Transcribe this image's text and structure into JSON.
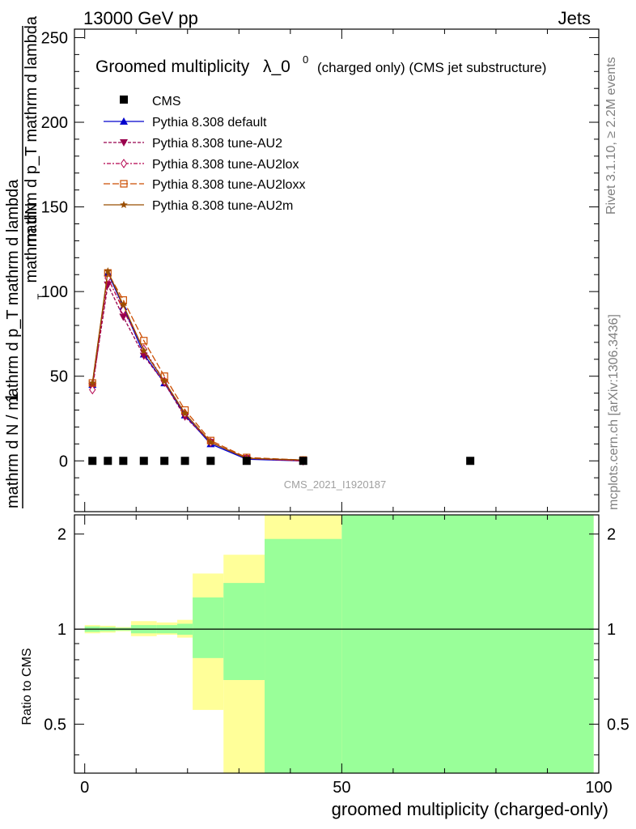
{
  "header": {
    "left": "13000 GeV pp",
    "right": "Jets"
  },
  "side_labels": {
    "rivet": "Rivet 3.1.10, ≥ 2.2M events",
    "mcplots": "mcplots.cern.ch [arXiv:1306.3436]"
  },
  "chart_data": {
    "type": "line",
    "title": "Groomed multiplicity",
    "title_symbol": "λ_0",
    "title_sup": "0",
    "title_suffix": "(charged only) (CMS jet substructure)",
    "watermark": "CMS_2021_I1920187",
    "xlabel": "groomed multiplicity (charged-only)",
    "ylabel_top": {
      "numerator": "mathrm dN",
      "denominator": "mathrm d p_T mathrm d lambda",
      "sub": "T",
      "one": "1"
    },
    "ylabel_bottom": "mathrm d N / mathrm d p_T mathrm d lambda",
    "ylabel_ratio": "Ratio to CMS",
    "xlim": [
      -2,
      100
    ],
    "ylim": [
      -30,
      255
    ],
    "ratio_ylim": [
      0.35,
      2.3
    ],
    "x_ticks": [
      "0",
      "50",
      "100"
    ],
    "y_ticks": [
      "0",
      "50",
      "100",
      "150",
      "200",
      "250"
    ],
    "ratio_ticks": [
      "0.5",
      "1",
      "2"
    ],
    "cms": {
      "name": "CMS",
      "x": [
        1.5,
        4.5,
        7.5,
        11.5,
        15.5,
        19.5,
        24.5,
        31.5,
        42.5,
        75
      ],
      "y": [
        0,
        0,
        0,
        0,
        0,
        0,
        0,
        0,
        0,
        0
      ]
    },
    "series": [
      {
        "name": "Pythia 8.308 default",
        "color": "#0000cc",
        "dash": "",
        "marker": "triangle-up",
        "x": [
          1.5,
          4.5,
          7.5,
          11.5,
          15.5,
          19.5,
          24.5,
          31.5,
          42.5
        ],
        "y": [
          45,
          111,
          91,
          63,
          46,
          27,
          10,
          1,
          0
        ]
      },
      {
        "name": "Pythia 8.308 tune-AU2",
        "color": "#99004d",
        "dash": "4,2",
        "marker": "triangle-down",
        "x": [
          1.5,
          4.5,
          7.5,
          11.5,
          15.5,
          19.5,
          24.5,
          31.5,
          42.5
        ],
        "y": [
          44,
          104,
          85,
          62,
          46,
          26,
          11,
          1.5,
          0
        ]
      },
      {
        "name": "Pythia 8.308 tune-AU2lox",
        "color": "#b3004d",
        "dash": "2,2,5,2",
        "marker": "diamond",
        "x": [
          1.5,
          4.5,
          7.5,
          11.5,
          15.5,
          19.5,
          24.5,
          31.5,
          42.5
        ],
        "y": [
          42,
          108,
          89,
          66,
          47,
          28,
          11,
          1.5,
          0
        ]
      },
      {
        "name": "Pythia 8.308 tune-AU2loxx",
        "color": "#cc4d00",
        "dash": "8,3",
        "marker": "square",
        "x": [
          1.5,
          4.5,
          7.5,
          11.5,
          15.5,
          19.5,
          24.5,
          31.5,
          42.5
        ],
        "y": [
          46,
          111,
          95,
          71,
          50,
          30,
          12,
          2,
          0.5
        ]
      },
      {
        "name": "Pythia 8.308 tune-AU2m",
        "color": "#994d00",
        "dash": "",
        "marker": "star",
        "x": [
          1.5,
          4.5,
          7.5,
          11.5,
          15.5,
          19.5,
          24.5,
          31.5,
          42.5
        ],
        "y": [
          46,
          112,
          92,
          65,
          47,
          28,
          11,
          1.5,
          0.5
        ]
      }
    ],
    "ratio_bands": [
      {
        "x": [
          0,
          3
        ],
        "stat": [
          0.98,
          1.02
        ],
        "total": [
          0.97,
          1.03
        ]
      },
      {
        "x": [
          3,
          6
        ],
        "stat": [
          0.985,
          1.015
        ],
        "total": [
          0.975,
          1.025
        ]
      },
      {
        "x": [
          6,
          9
        ],
        "stat": [
          0.99,
          1.01
        ],
        "total": [
          0.985,
          1.015
        ]
      },
      {
        "x": [
          9,
          14
        ],
        "stat": [
          0.97,
          1.03
        ],
        "total": [
          0.95,
          1.06
        ]
      },
      {
        "x": [
          14,
          18
        ],
        "stat": [
          0.97,
          1.03
        ],
        "total": [
          0.96,
          1.05
        ]
      },
      {
        "x": [
          18,
          21
        ],
        "stat": [
          0.96,
          1.04
        ],
        "total": [
          0.94,
          1.07
        ]
      },
      {
        "x": [
          21,
          27
        ],
        "stat": [
          0.81,
          1.26
        ],
        "total": [
          0.555,
          1.5
        ]
      },
      {
        "x": [
          27,
          35
        ],
        "stat": [
          0.69,
          1.4
        ],
        "total": [
          0.35,
          1.72
        ]
      },
      {
        "x": [
          35,
          50
        ],
        "stat": [
          0.35,
          1.93
        ],
        "total": [
          0.35,
          2.3
        ]
      },
      {
        "x": [
          50,
          99
        ],
        "stat": [
          0.35,
          2.3
        ],
        "total": [
          0.35,
          2.3
        ]
      }
    ]
  }
}
